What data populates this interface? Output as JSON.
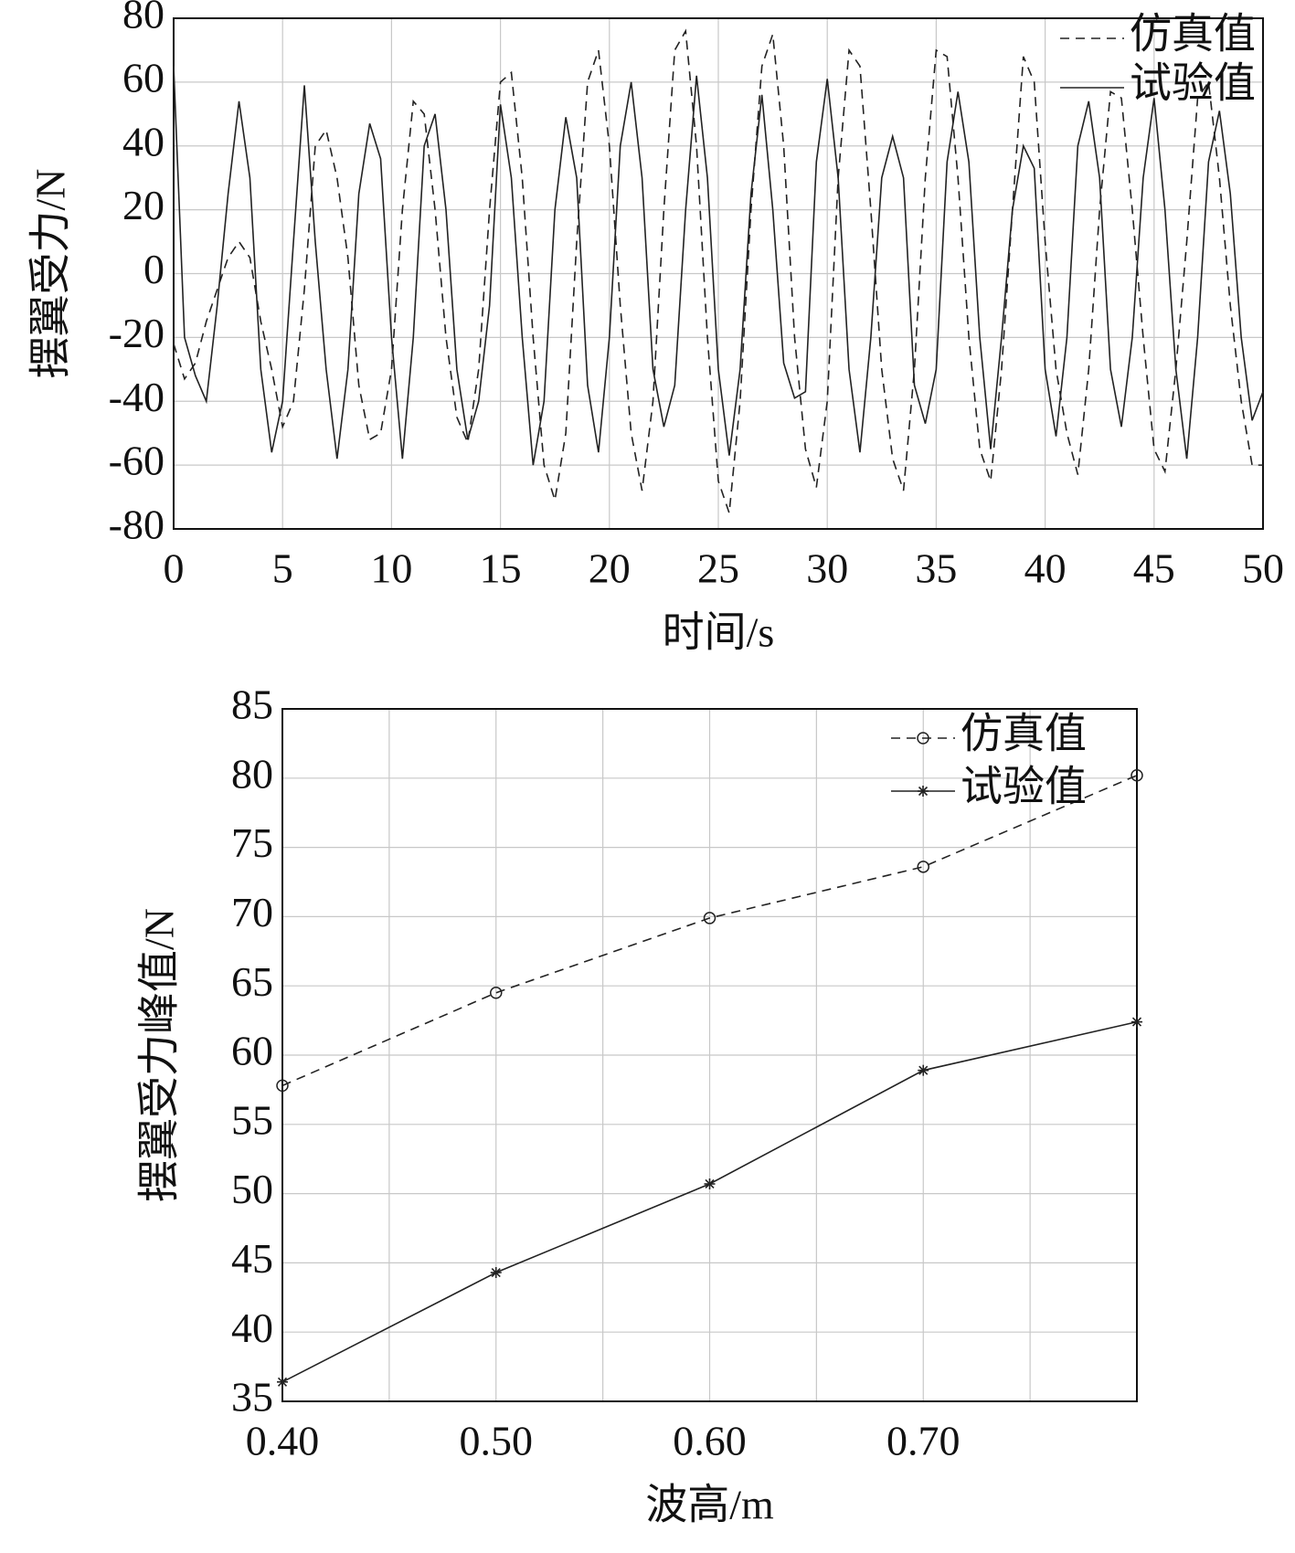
{
  "chart_data": [
    {
      "type": "line",
      "xlabel": "时间/s",
      "ylabel": "摆翼受力/N",
      "xlim": [
        0,
        50
      ],
      "xticks": [
        0,
        5,
        10,
        15,
        20,
        25,
        30,
        35,
        40,
        45,
        50
      ],
      "ylim": [
        -80,
        80
      ],
      "yticks": [
        -80,
        -60,
        -40,
        -20,
        0,
        20,
        40,
        60,
        80
      ],
      "grid": true,
      "legend": "upper right",
      "x": [
        0,
        0.5,
        1,
        1.5,
        2,
        2.5,
        3,
        3.5,
        4,
        4.5,
        5,
        5.5,
        6,
        6.5,
        7,
        7.5,
        8,
        8.5,
        9,
        9.5,
        10,
        10.5,
        11,
        11.5,
        12,
        12.5,
        13,
        13.5,
        14,
        14.5,
        15,
        15.5,
        16,
        16.5,
        17,
        17.5,
        18,
        18.5,
        19,
        19.5,
        20,
        20.5,
        21,
        21.5,
        22,
        22.5,
        23,
        23.5,
        24,
        24.5,
        25,
        25.5,
        26,
        26.5,
        27,
        27.5,
        28,
        28.5,
        29,
        29.5,
        30,
        30.5,
        31,
        31.5,
        32,
        32.5,
        33,
        33.5,
        34,
        34.5,
        35,
        35.5,
        36,
        36.5,
        37,
        37.5,
        38,
        38.5,
        39,
        39.5,
        40,
        40.5,
        41,
        41.5,
        42,
        42.5,
        43,
        43.5,
        44,
        44.5,
        45,
        45.5,
        46,
        46.5,
        47,
        47.5,
        48,
        48.5,
        49,
        49.5,
        50
      ],
      "series": [
        {
          "name": "仿真值",
          "color": "#222222",
          "dash": "dashed",
          "values": [
            -22,
            -33,
            -28,
            -15,
            -5,
            5,
            10,
            5,
            -15,
            -30,
            -48,
            -40,
            -5,
            40,
            45,
            30,
            5,
            -35,
            -52,
            -50,
            -30,
            20,
            54,
            50,
            20,
            -20,
            -45,
            -53,
            -30,
            20,
            60,
            63,
            30,
            -20,
            -60,
            -71,
            -50,
            10,
            60,
            70,
            40,
            -10,
            -50,
            -68,
            -40,
            20,
            70,
            76,
            40,
            -20,
            -65,
            -75,
            -40,
            20,
            65,
            75,
            40,
            -20,
            -55,
            -67,
            -40,
            30,
            70,
            65,
            20,
            -30,
            -58,
            -68,
            -30,
            30,
            70,
            68,
            30,
            -20,
            -55,
            -65,
            -30,
            20,
            68,
            60,
            10,
            -30,
            -50,
            -63,
            -30,
            20,
            57,
            55,
            20,
            -20,
            -55,
            -62,
            -30,
            10,
            55,
            60,
            30,
            -10,
            -40,
            -60,
            -60
          ]
        },
        {
          "name": "试验值",
          "color": "#222222",
          "dash": "solid",
          "values": [
            65,
            -20,
            -32,
            -40,
            -10,
            25,
            54,
            30,
            -30,
            -56,
            -40,
            10,
            59,
            10,
            -30,
            -58,
            -30,
            25,
            47,
            36,
            -20,
            -58,
            -20,
            40,
            50,
            20,
            -30,
            -52,
            -40,
            -10,
            53,
            30,
            -20,
            -60,
            -40,
            20,
            49,
            30,
            -35,
            -56,
            -20,
            40,
            60,
            30,
            -30,
            -48,
            -35,
            20,
            62,
            30,
            -30,
            -57,
            -30,
            25,
            56,
            20,
            -28,
            -39,
            -37,
            35,
            61,
            30,
            -30,
            -56,
            -20,
            30,
            43,
            30,
            -35,
            -47,
            -30,
            35,
            57,
            35,
            -20,
            -55,
            -20,
            20,
            40,
            33,
            -30,
            -51,
            -20,
            40,
            54,
            30,
            -30,
            -48,
            -20,
            30,
            55,
            20,
            -30,
            -58,
            -20,
            35,
            51,
            25,
            -20,
            -46,
            -37
          ]
        }
      ]
    },
    {
      "type": "line",
      "xlabel": "波高/m",
      "ylabel": "摆翼受力峰值/N",
      "xlim": [
        0.4,
        0.8
      ],
      "xticks": [
        {
          "value": 0.4,
          "label": "0.40"
        },
        {
          "value": 0.5,
          "label": "0.50"
        },
        {
          "value": 0.6,
          "label": "0.60"
        },
        {
          "value": 0.7,
          "label": "0.70"
        }
      ],
      "xminor": [
        0.45,
        0.55,
        0.65,
        0.75
      ],
      "ylim": [
        35,
        85
      ],
      "yticks": [
        35,
        40,
        45,
        50,
        55,
        60,
        65,
        70,
        75,
        80,
        85
      ],
      "grid": true,
      "legend": "upper right",
      "x": [
        0.4,
        0.5,
        0.6,
        0.7,
        0.8
      ],
      "series": [
        {
          "name": "仿真值",
          "color": "#222222",
          "dash": "dashed",
          "marker": "circle",
          "values": [
            57.8,
            64.5,
            69.9,
            73.6,
            80.2
          ]
        },
        {
          "name": "试验值",
          "color": "#222222",
          "dash": "solid",
          "marker": "star",
          "values": [
            36.4,
            44.3,
            50.7,
            58.9,
            62.4
          ]
        }
      ]
    }
  ]
}
